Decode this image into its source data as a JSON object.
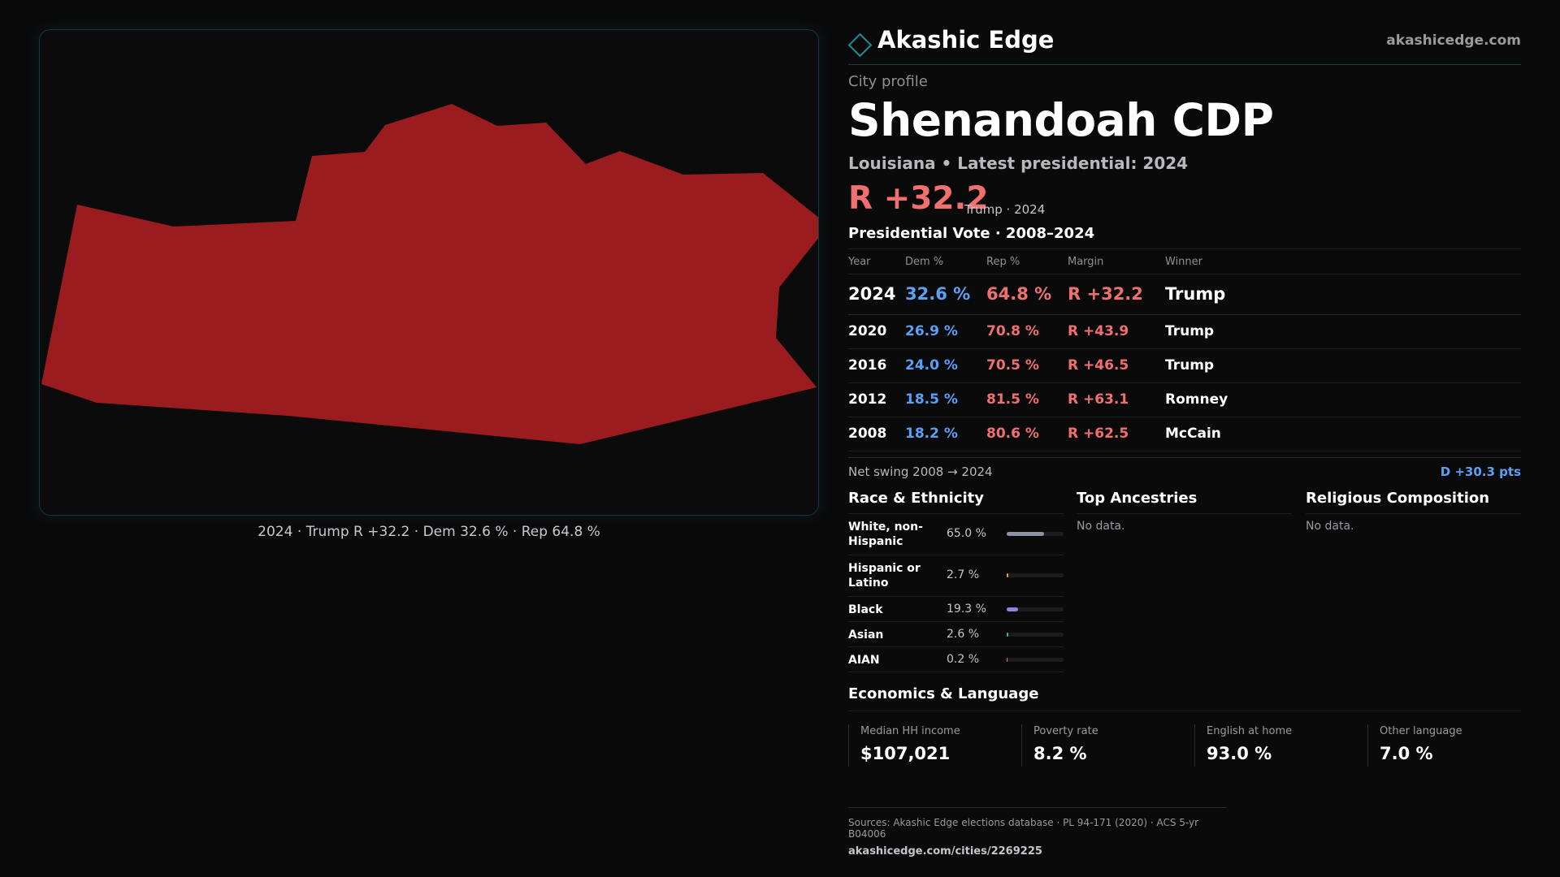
{
  "map": {
    "caption": "2024 · Trump R +32.2 · Dem 32.6 % · Rep 64.8 %",
    "fill_color": "#9b1c1f"
  },
  "brand": {
    "name": "Akashic Edge",
    "url": "akashicedge.com",
    "icon": "diamond-icon"
  },
  "profile": {
    "kicker": "City profile",
    "title": "Shenandoah CDP",
    "subtitle": "Louisiana • Latest presidential: 2024",
    "margin": "R +32.2",
    "margin_note": "Trump · 2024"
  },
  "presidential": {
    "heading": "Presidential Vote · 2008–2024",
    "columns": [
      "Year",
      "Dem %",
      "Rep %",
      "Margin",
      "Winner"
    ],
    "rows": [
      {
        "year": "2024",
        "dem": "32.6 %",
        "rep": "64.8 %",
        "margin": "R +32.2",
        "winner": "Trump"
      },
      {
        "year": "2020",
        "dem": "26.9 %",
        "rep": "70.8 %",
        "margin": "R +43.9",
        "winner": "Trump"
      },
      {
        "year": "2016",
        "dem": "24.0 %",
        "rep": "70.5 %",
        "margin": "R +46.5",
        "winner": "Trump"
      },
      {
        "year": "2012",
        "dem": "18.5 %",
        "rep": "81.5 %",
        "margin": "R +63.1",
        "winner": "Romney"
      },
      {
        "year": "2008",
        "dem": "18.2 %",
        "rep": "80.6 %",
        "margin": "R +62.5",
        "winner": "McCain"
      }
    ],
    "swing_label": "Net swing 2008 → 2024",
    "swing_value": "D +30.3 pts"
  },
  "race": {
    "title": "Race & Ethnicity",
    "rows": [
      {
        "label": "White, non-Hispanic",
        "value": "65.0 %",
        "share": 65.0,
        "color": "#8a93a6"
      },
      {
        "label": "Hispanic or Latino",
        "value": "2.7 %",
        "share": 2.7,
        "color": "#e0a030"
      },
      {
        "label": "Black",
        "value": "19.3 %",
        "share": 19.3,
        "color": "#9a7fe0"
      },
      {
        "label": "Asian",
        "value": "2.6 %",
        "share": 2.6,
        "color": "#2fb8a8"
      },
      {
        "label": "AIAN",
        "value": "0.2 %",
        "share": 0.2,
        "color": "#e07a50"
      }
    ]
  },
  "ancestries": {
    "title": "Top Ancestries",
    "empty": "No data."
  },
  "religion": {
    "title": "Religious Composition",
    "empty": "No data."
  },
  "economics": {
    "title": "Economics & Language",
    "items": [
      {
        "label": "Median HH income",
        "value": "$107,021"
      },
      {
        "label": "Poverty rate",
        "value": "8.2 %"
      },
      {
        "label": "English at home",
        "value": "93.0 %"
      },
      {
        "label": "Other language",
        "value": "7.0 %"
      }
    ]
  },
  "footer": {
    "sources": "Sources: Akashic Edge elections database · PL 94-171 (2020) · ACS 5-yr B04006",
    "url": "akashicedge.com/cities/2269225"
  }
}
